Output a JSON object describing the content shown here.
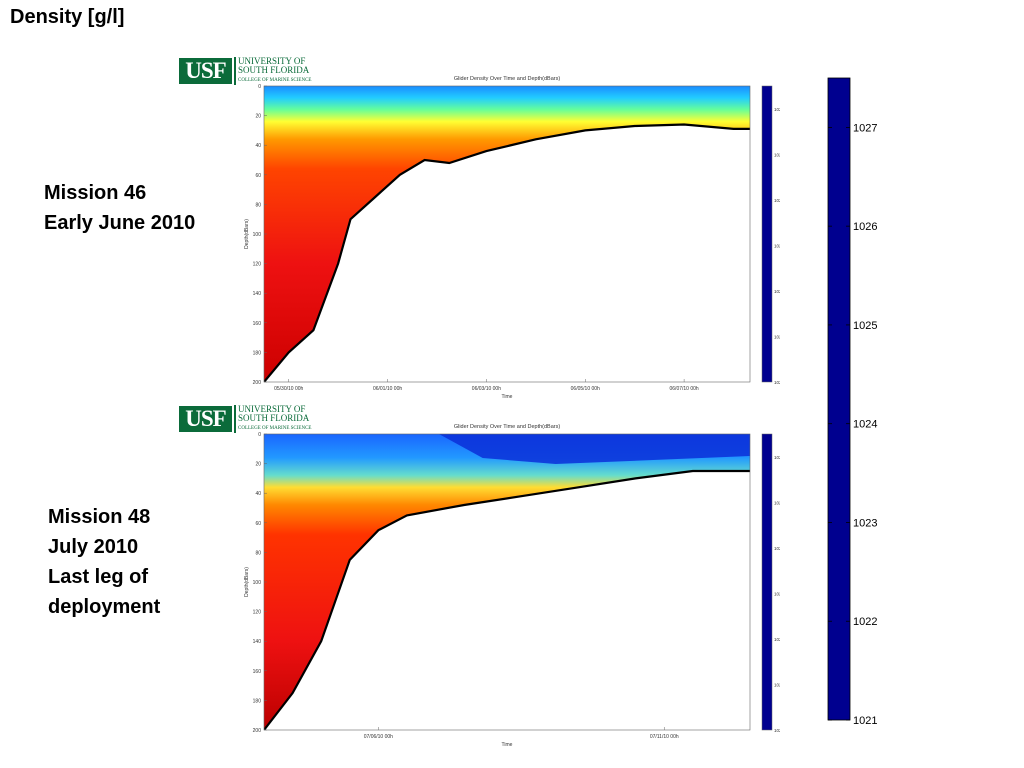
{
  "slide": {
    "title": "Density [g/l]",
    "logo": {
      "abbr": "USF",
      "line1": "UNIVERSITY OF",
      "line2": "SOUTH FLORIDA",
      "line3": "COLLEGE OF MARINE SCIENCE"
    },
    "missions": [
      {
        "line1": "Mission 46",
        "line2": "Early June 2010"
      },
      {
        "line1": "Mission 48",
        "line2": "July 2010",
        "line3": "Last leg of",
        "line4": "deployment"
      }
    ]
  },
  "colors": {
    "usf_green": "#0b6b3a",
    "colormap": [
      "#00008f",
      "#0000ff",
      "#0080ff",
      "#00ffff",
      "#80ff80",
      "#ffff00",
      "#ff8000",
      "#ff0000",
      "#800000"
    ],
    "seafloor": "#000000",
    "background": "#ffffff"
  },
  "chart_data": [
    {
      "type": "heatmap",
      "title": "Glider Density Over Time and Depth(dBars)",
      "xlabel": "Time",
      "ylabel": "Depth(dBars)",
      "y_reversed": true,
      "ylim": [
        0,
        200
      ],
      "y_ticks": [
        0,
        20,
        40,
        60,
        80,
        100,
        120,
        140,
        160,
        180,
        200
      ],
      "x_tick_labels": [
        "05/30/10 00h",
        "06/01/10 00h",
        "06/03/10 00h",
        "06/05/10 00h",
        "06/07/10 00h"
      ],
      "colorbar": {
        "range": [
          1021,
          1027.5
        ],
        "ticks": [
          1021,
          1022,
          1023,
          1024,
          1025,
          1026,
          1027
        ]
      },
      "seafloor_depth": [
        {
          "t": "05/29/10 12h",
          "depth": 200
        },
        {
          "t": "05/30/10 00h",
          "depth": 180
        },
        {
          "t": "05/30/10 12h",
          "depth": 165
        },
        {
          "t": "05/31/10 00h",
          "depth": 120
        },
        {
          "t": "05/31/10 06h",
          "depth": 90
        },
        {
          "t": "05/31/10 18h",
          "depth": 75
        },
        {
          "t": "06/01/10 06h",
          "depth": 60
        },
        {
          "t": "06/01/10 18h",
          "depth": 50
        },
        {
          "t": "06/02/10 06h",
          "depth": 52
        },
        {
          "t": "06/03/10 00h",
          "depth": 44
        },
        {
          "t": "06/04/10 00h",
          "depth": 36
        },
        {
          "t": "06/05/10 00h",
          "depth": 30
        },
        {
          "t": "06/06/10 00h",
          "depth": 27
        },
        {
          "t": "06/07/10 00h",
          "depth": 26
        },
        {
          "t": "06/08/10 00h",
          "depth": 29
        }
      ]
    },
    {
      "type": "heatmap",
      "title": "Glider Density Over Time and Depth(dBars)",
      "xlabel": "Time",
      "ylabel": "Depth(dBars)",
      "y_reversed": true,
      "ylim": [
        0,
        200
      ],
      "y_ticks": [
        0,
        20,
        40,
        60,
        80,
        100,
        120,
        140,
        160,
        180,
        200
      ],
      "x_tick_labels": [
        "07/06/10 00h",
        "07/11/10 00h"
      ],
      "colorbar": {
        "range": [
          1021,
          1027.5
        ],
        "ticks": [
          1021,
          1022,
          1023,
          1024,
          1025,
          1026,
          1027
        ]
      },
      "seafloor_depth": [
        {
          "t": "07/04/10 00h",
          "depth": 200
        },
        {
          "t": "07/04/10 12h",
          "depth": 175
        },
        {
          "t": "07/05/10 00h",
          "depth": 140
        },
        {
          "t": "07/05/10 12h",
          "depth": 85
        },
        {
          "t": "07/06/10 00h",
          "depth": 65
        },
        {
          "t": "07/06/10 12h",
          "depth": 55
        },
        {
          "t": "07/07/10 12h",
          "depth": 48
        },
        {
          "t": "07/08/10 12h",
          "depth": 42
        },
        {
          "t": "07/09/10 12h",
          "depth": 36
        },
        {
          "t": "07/10/10 12h",
          "depth": 30
        },
        {
          "t": "07/11/10 12h",
          "depth": 25
        }
      ]
    }
  ]
}
